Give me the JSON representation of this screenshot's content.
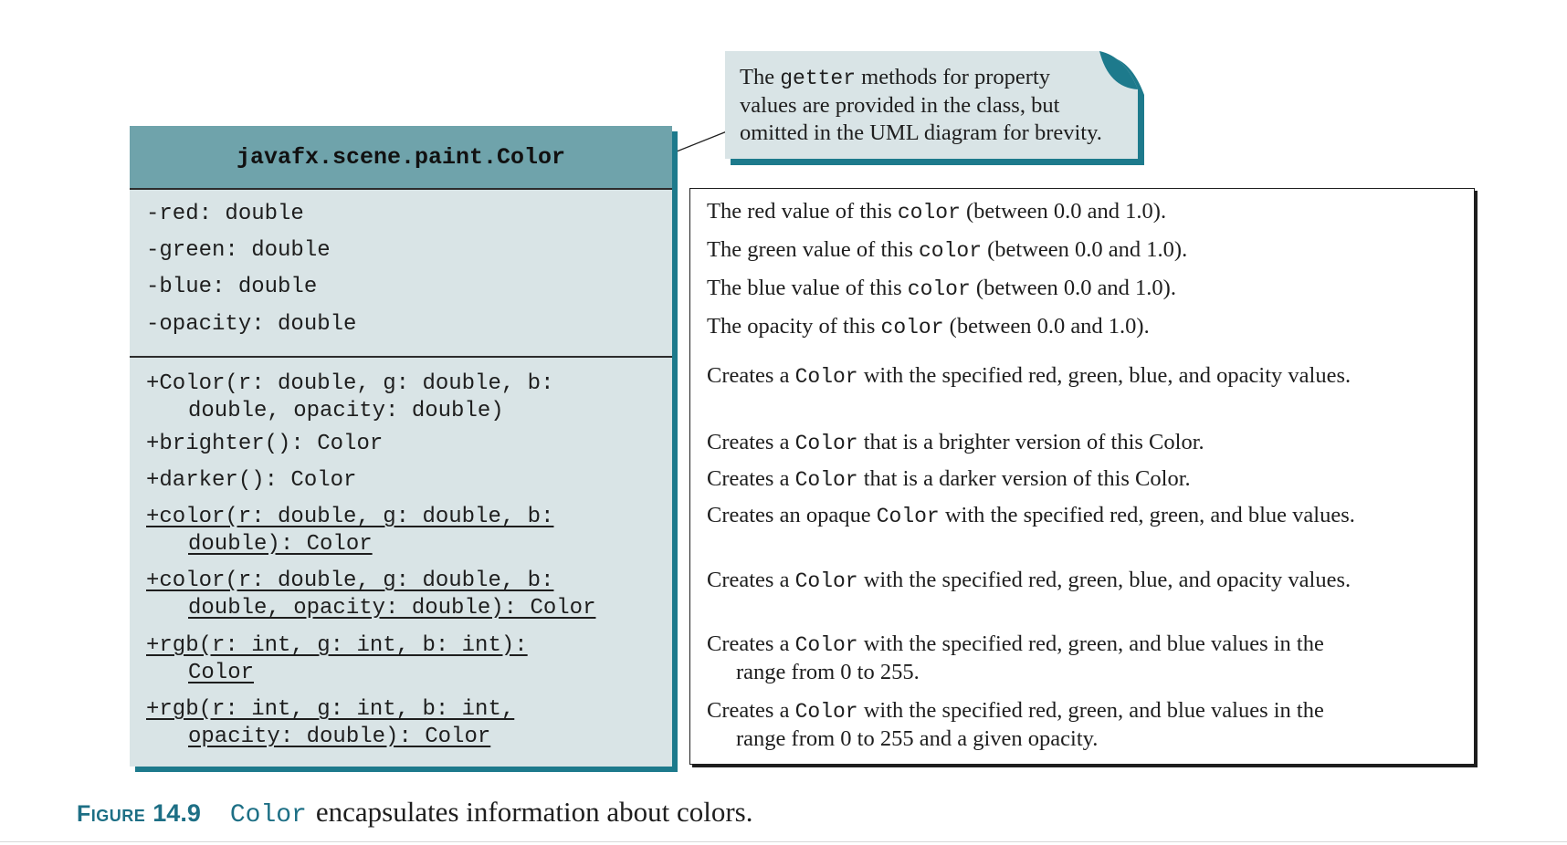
{
  "uml": {
    "class_name": "javafx.scene.paint.Color",
    "attributes": [
      "-red: double",
      "-green: double",
      "-blue: double",
      "-opacity: double"
    ],
    "methods": [
      {
        "line1": "+Color(r: double, g: double, b:",
        "line2": "double, opacity: double)"
      },
      {
        "line1": "+brighter(): Color"
      },
      {
        "line1": "+darker(): Color"
      },
      {
        "line1": "+color(r: double, g: double, b:",
        "line2": "double): Color"
      },
      {
        "line1": "+color(r: double, g: double, b:",
        "line2": "double, opacity: double): Color"
      },
      {
        "line1": "+rgb(r: int, g: int, b: int):",
        "line2": "Color"
      },
      {
        "line1": "+rgb(r: int, g: int, b: int,",
        "line2": "opacity: double): Color"
      }
    ]
  },
  "descriptions": [
    {
      "pre": "The red value of this ",
      "code": "color",
      "post": " (between 0.0 and 1.0)."
    },
    {
      "pre": "The green value of this ",
      "code": "color",
      "post": " (between 0.0 and 1.0)."
    },
    {
      "pre": "The blue value of this ",
      "code": "color",
      "post": " (between 0.0 and 1.0)."
    },
    {
      "pre": "The opacity of this ",
      "code": "color",
      "post": " (between 0.0 and 1.0)."
    },
    {
      "pre": "Creates a ",
      "code": "Color",
      "post": " with the specified red, green, blue, and opacity values."
    },
    {
      "pre": "Creates a ",
      "code": "Color",
      "post": " that is a brighter version of this Color."
    },
    {
      "pre": "Creates a ",
      "code": "Color",
      "post": " that is a darker version of this Color."
    },
    {
      "pre": "Creates an opaque ",
      "code": "Color",
      "post": " with the specified red, green, and blue values."
    },
    {
      "pre": "Creates a ",
      "code": "Color",
      "post": " with the specified red, green, blue, and opacity values."
    },
    {
      "pre": "Creates a ",
      "code": "Color",
      "post": " with the specified red, green, and blue values in the",
      "cont": "range from 0 to 255."
    },
    {
      "pre": "Creates a ",
      "code": "Color",
      "post": " with the specified red, green, and blue values in the",
      "cont": "range from 0 to 255 and a given opacity."
    }
  ],
  "note": {
    "line1_pre": "The ",
    "line1_code": "getter",
    "line1_post": " methods for property",
    "line2": "values are provided in the class, but",
    "line3": "omitted in the UML diagram for brevity."
  },
  "caption": {
    "label": "Figure",
    "number": "14.9",
    "code": "Color",
    "text": "encapsulates information about colors."
  },
  "colors": {
    "header_fill": "#6fa3ab",
    "box_fill": "#d9e4e6",
    "shadow": "#1d7a8c",
    "caption_accent": "#1d6f85"
  }
}
